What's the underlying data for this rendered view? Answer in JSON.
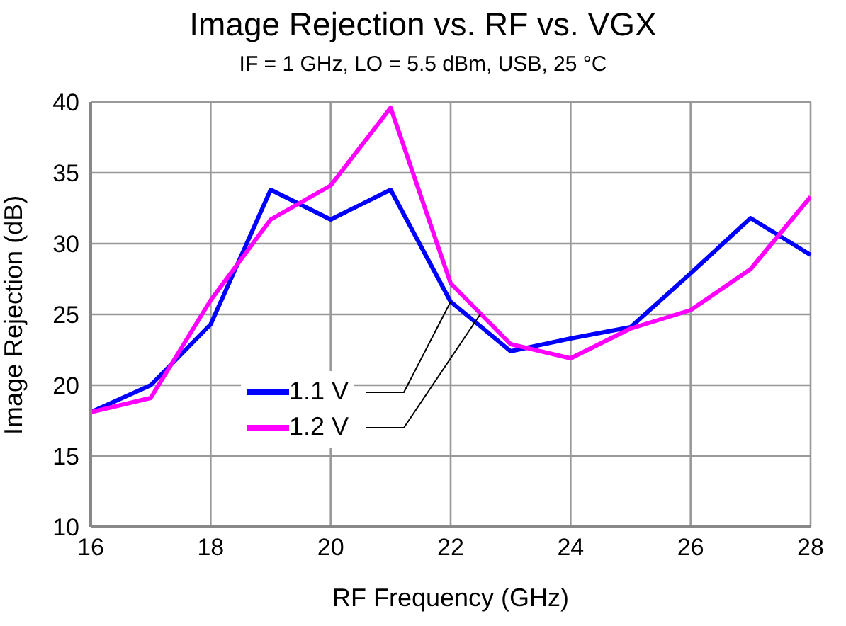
{
  "chart_data": {
    "type": "line",
    "title": "Image Rejection vs. RF vs. VGX",
    "subtitle": "IF = 1 GHz, LO = 5.5 dBm, USB, 25 °C",
    "xlabel": "RF Frequency (GHz)",
    "ylabel": "Image Rejection (dB)",
    "x": [
      16,
      17,
      18,
      19,
      20,
      21,
      22,
      23,
      24,
      25,
      26,
      27,
      28
    ],
    "series": [
      {
        "name": "1.1 V",
        "color": "#0000ff",
        "values": [
          18.1,
          20,
          24.3,
          33.8,
          31.7,
          33.8,
          25.9,
          22.4,
          23.3,
          24.1,
          27.9,
          31.8,
          29.2
        ]
      },
      {
        "name": "1.2 V",
        "color": "#ff00ff",
        "values": [
          18.1,
          19.1,
          26,
          31.7,
          34.1,
          39.6,
          27.2,
          22.9,
          21.9,
          24,
          25.3,
          28.2,
          33.3
        ]
      }
    ],
    "xlim": [
      16,
      28
    ],
    "xticks": [
      16,
      18,
      20,
      22,
      24,
      26,
      28
    ],
    "ylim": [
      10,
      40
    ],
    "yticks": [
      10,
      15,
      20,
      25,
      30,
      35,
      40
    ],
    "grid": true,
    "legend": "left",
    "marker": "none",
    "line_style": "solid"
  }
}
